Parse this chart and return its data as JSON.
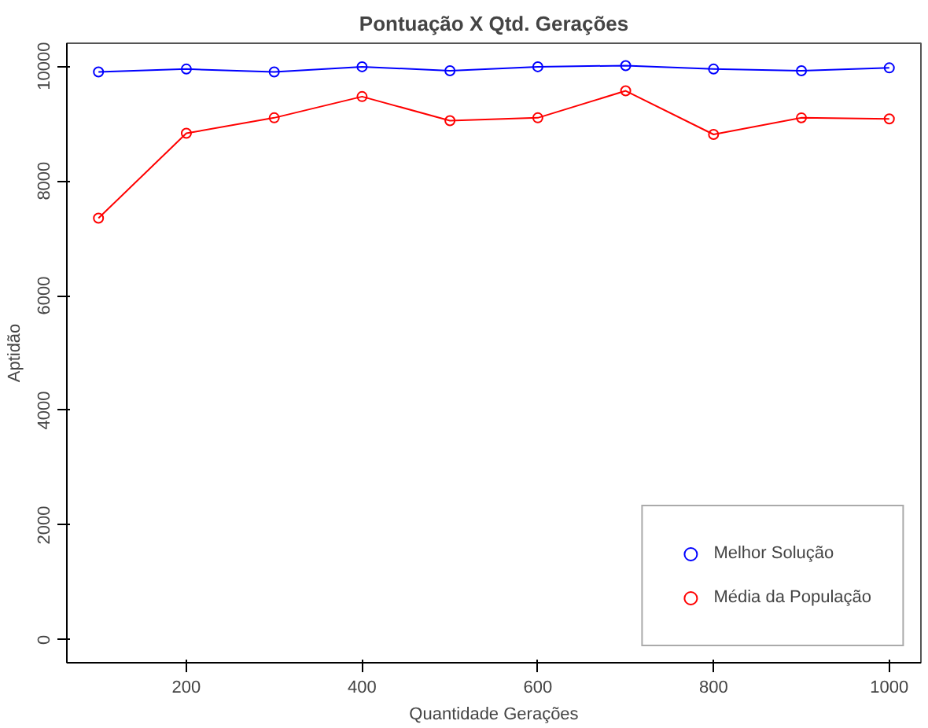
{
  "chart_data": {
    "type": "line",
    "title": "Pontuação X Qtd. Gerações",
    "xlabel": "Quantidade Gerações",
    "ylabel": "Aptidão",
    "x": [
      100,
      200,
      300,
      400,
      500,
      600,
      700,
      800,
      900,
      1000
    ],
    "series": [
      {
        "name": "Melhor Solução",
        "color": "#0000ff",
        "values": [
          9900,
          9950,
          9900,
          9990,
          9920,
          9990,
          10010,
          9950,
          9920,
          9970
        ]
      },
      {
        "name": "Média da População",
        "color": "#ff0000",
        "values": [
          7350,
          8830,
          9100,
          9470,
          9050,
          9100,
          9570,
          8810,
          9100,
          9080
        ]
      }
    ],
    "xlim": [
      64,
      1036
    ],
    "ylim": [
      -400,
      10400
    ],
    "xticks": [
      200,
      400,
      600,
      800,
      1000
    ],
    "yticks": [
      0,
      2000,
      4000,
      6000,
      8000,
      10000
    ],
    "grid": false,
    "legend": "bottom right",
    "marker": "circle",
    "line_style": "solid"
  }
}
